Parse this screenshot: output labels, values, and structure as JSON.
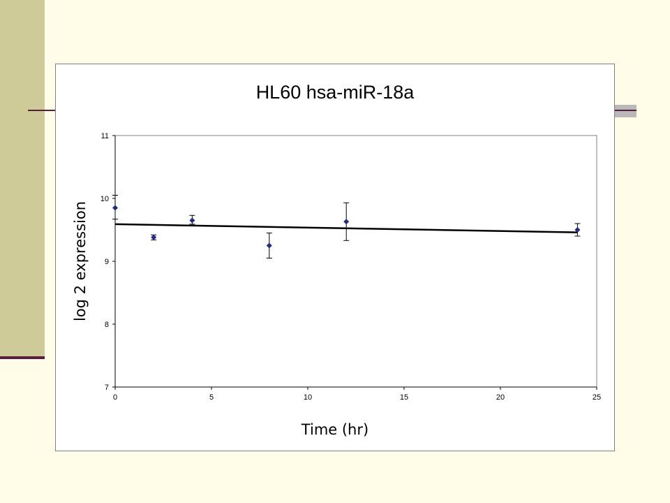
{
  "chart_data": {
    "type": "scatter",
    "title": "HL60 hsa-miR-18a",
    "xlabel": "Time (hr)",
    "ylabel": "log 2 expression",
    "xlim": [
      0,
      25
    ],
    "ylim": [
      7,
      11
    ],
    "x_ticks": [
      "0",
      "5",
      "10",
      "15",
      "20",
      "25"
    ],
    "y_ticks": [
      "7",
      "8",
      "9",
      "10",
      "11"
    ],
    "grid": false,
    "legend": false,
    "series": [
      {
        "marker": "diamond",
        "color": "#1f2d86",
        "points": [
          {
            "x": 0,
            "y": 9.85,
            "err_low": 0.18,
            "err_high": 0.2
          },
          {
            "x": 2,
            "y": 9.38,
            "err_low": 0.04,
            "err_high": 0.04
          },
          {
            "x": 4,
            "y": 9.65,
            "err_low": 0.06,
            "err_high": 0.08
          },
          {
            "x": 8,
            "y": 9.25,
            "err_low": 0.2,
            "err_high": 0.2
          },
          {
            "x": 12,
            "y": 9.63,
            "err_low": 0.3,
            "err_high": 0.3
          },
          {
            "x": 24,
            "y": 9.5,
            "err_low": 0.1,
            "err_high": 0.1
          }
        ]
      }
    ],
    "trendline": {
      "type": "linear",
      "x": [
        0,
        24
      ],
      "y": [
        9.59,
        9.46
      ],
      "color": "#000000"
    }
  }
}
